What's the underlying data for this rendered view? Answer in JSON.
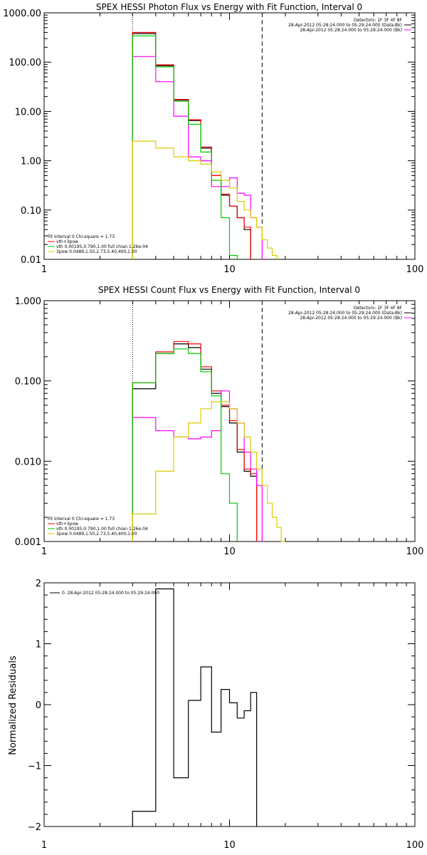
{
  "chart_data": [
    {
      "type": "line",
      "panel": "photon",
      "title": "SPEX HESSI Photon Flux vs Energy with Fit Function, Interval 0",
      "xlabel": "",
      "ylabel": "",
      "xscale": "log",
      "yscale": "log",
      "xlim": [
        1,
        100
      ],
      "ylim": [
        0.01,
        1000
      ],
      "xticks": [
        "1",
        "10",
        "100"
      ],
      "yticks": [
        "1000.00",
        "100.00",
        "10.00",
        "1.00",
        "0.10",
        "0.01"
      ],
      "xtick_values": [
        1,
        10,
        100
      ],
      "ytick_values": [
        1000,
        100,
        10,
        1,
        0.1,
        0.01
      ],
      "vlines": [
        {
          "x": 3,
          "style": "dotted"
        },
        {
          "x": 15,
          "style": "dashed"
        }
      ],
      "top_legend": [
        "Detectors: 1F 3F 4F 8F",
        "28-Apr-2012 05:28:24.000 to 05:29:24.000 (Data-Bk)",
        "28-Apr-2012 05:28:24.000 to 05:29:24.000 (Bk)"
      ],
      "fit_legend": [
        "Fit Interval 0   Chi-square = 1.73",
        "vth+3pow",
        "vth 0.00195,0.790,1.00   full chian 1.26e-04",
        "3pow 0.0489,1.50,2.73,5.40,400,1.00"
      ],
      "bin_edges": [
        3,
        4,
        5,
        6,
        7,
        8,
        9,
        10,
        11,
        12,
        13,
        14,
        15,
        16,
        17,
        18
      ],
      "series": [
        {
          "name": "",
          "color": "#000000",
          "values": [
            380,
            85,
            17,
            6.5,
            1.8,
            0.5,
            0.2,
            0.12,
            0.07,
            0.04,
            null,
            null,
            null,
            null,
            null
          ]
        },
        {
          "name": "",
          "color": "#ff0000",
          "values": [
            400,
            88,
            17.5,
            6.8,
            1.9,
            0.5,
            0.21,
            0.12,
            0.07,
            0.045,
            null,
            null,
            null,
            null,
            null
          ]
        },
        {
          "name": "vth+3pow",
          "color": "#ff00ff",
          "values": [
            130,
            40,
            8,
            1.2,
            1.0,
            0.3,
            0.3,
            0.45,
            0.22,
            0.2,
            0.07,
            0.045,
            null,
            null,
            null
          ]
        },
        {
          "name": "vth",
          "color": "#00cc00",
          "values": [
            340,
            80,
            16,
            5.5,
            1.5,
            0.4,
            0.07,
            0.012,
            null,
            null,
            null,
            null,
            null,
            null,
            null
          ]
        },
        {
          "name": "3pow",
          "color": "#ddcc00",
          "values": [
            2.5,
            1.8,
            1.2,
            1.0,
            0.85,
            0.6,
            0.4,
            0.28,
            0.15,
            0.1,
            0.07,
            0.045,
            0.025,
            0.017,
            0.012
          ]
        }
      ]
    },
    {
      "type": "line",
      "panel": "count",
      "title": "SPEX HESSI Count Flux vs Energy with Fit Function, Interval 0",
      "xlabel": "",
      "ylabel": "",
      "xscale": "log",
      "yscale": "log",
      "xlim": [
        1,
        100
      ],
      "ylim": [
        0.001,
        1
      ],
      "xticks": [
        "1",
        "10",
        "100"
      ],
      "yticks": [
        "1.000",
        "0.100",
        "0.010",
        "0.001"
      ],
      "xtick_values": [
        1,
        10,
        100
      ],
      "ytick_values": [
        1,
        0.1,
        0.01,
        0.001
      ],
      "vlines": [
        {
          "x": 3,
          "style": "dotted"
        },
        {
          "x": 15,
          "style": "dashed"
        }
      ],
      "top_legend": [
        "Detectors: 1F 3F 4F 8F",
        "28-Apr-2012 05:28:24.000 to 05:29:24.000 (Data-Bk)",
        "28-Apr-2012 05:28:24.000 to 05:29:24.000 (Bk)"
      ],
      "fit_legend": [
        "Fit Interval 0   Chi-square = 1.73",
        "vth+3pow",
        "vth 0.00195,0.790,1.00   full chian 1.26e-04",
        "3pow 0.0489,1.50,2.73,5.40,400,1.00"
      ],
      "bin_edges": [
        3,
        4,
        5,
        6,
        7,
        8,
        9,
        10,
        11,
        12,
        13,
        14,
        15,
        16,
        17,
        18,
        19,
        20
      ],
      "series": [
        {
          "name": "",
          "color": "#000000",
          "values": [
            0.08,
            0.22,
            0.29,
            0.26,
            0.14,
            0.07,
            0.048,
            0.03,
            0.013,
            0.0075,
            0.0065,
            null,
            null,
            null,
            null,
            null,
            null
          ]
        },
        {
          "name": "",
          "color": "#ff0000",
          "values": [
            0.095,
            0.23,
            0.31,
            0.29,
            0.15,
            0.075,
            0.05,
            0.032,
            0.014,
            0.008,
            0.007,
            null,
            null,
            null,
            null,
            null,
            null
          ]
        },
        {
          "name": "vth+3pow",
          "color": "#ff00ff",
          "values": [
            0.035,
            0.024,
            0.02,
            0.019,
            0.02,
            0.024,
            0.075,
            0.045,
            0.03,
            0.013,
            0.008,
            0.005,
            null,
            null,
            null,
            null,
            null
          ]
        },
        {
          "name": "vth",
          "color": "#00cc00",
          "values": [
            0.095,
            0.22,
            0.25,
            0.22,
            0.13,
            0.065,
            0.007,
            0.003,
            null,
            null,
            null,
            null,
            null,
            null,
            null,
            null,
            null
          ]
        },
        {
          "name": "3pow",
          "color": "#ddcc00",
          "values": [
            0.0022,
            0.0075,
            0.02,
            0.03,
            0.045,
            0.055,
            0.055,
            0.045,
            0.03,
            0.02,
            0.013,
            0.008,
            0.005,
            0.003,
            0.002,
            0.0015,
            0.001
          ]
        }
      ]
    },
    {
      "type": "line",
      "panel": "residuals",
      "title": "",
      "xlabel": "",
      "ylabel": "Normalized Residuals",
      "xscale": "log",
      "yscale": "linear",
      "xlim": [
        1,
        100
      ],
      "ylim": [
        -2,
        2
      ],
      "xticks": [
        "1",
        "10",
        "100"
      ],
      "yticks": [
        "2",
        "1",
        "0",
        "−1",
        "−2"
      ],
      "xtick_values": [
        1,
        10,
        100
      ],
      "ytick_values": [
        2,
        1,
        0,
        -1,
        -2
      ],
      "legend": [
        "0. 28-Apr-2012 05:28:24.000 to 05:29:24.000"
      ],
      "bin_edges": [
        3,
        4,
        5,
        6,
        7,
        8,
        9,
        10,
        11,
        12,
        13,
        14,
        15
      ],
      "series": [
        {
          "name": "",
          "color": "#000000",
          "values": [
            -1.75,
            1.9,
            -1.2,
            0.07,
            0.62,
            -0.45,
            0.25,
            0.03,
            -0.22,
            -0.1,
            0.2,
            null
          ]
        }
      ]
    }
  ]
}
